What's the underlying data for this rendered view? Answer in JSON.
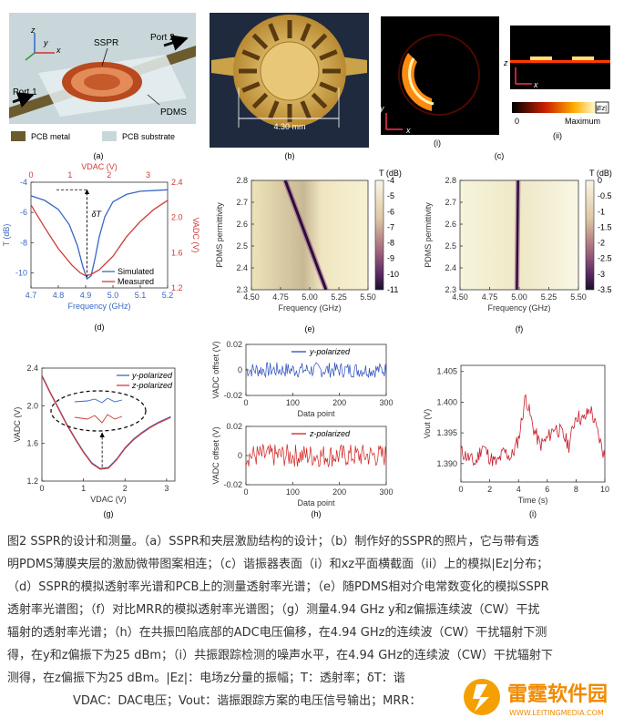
{
  "panels": {
    "a": {
      "label": "(a)",
      "callouts": {
        "sspr": "SSPR",
        "port1": "Port 1",
        "port2": "Port 2",
        "pdms": "PDMS",
        "z": "z",
        "y": "y",
        "x": "x"
      },
      "legend": {
        "metal": "PCB metal",
        "substrate": "PCB substrate"
      }
    },
    "b": {
      "label": "(b)",
      "dimension": "4.30 mm"
    },
    "c": {
      "label": "(c)",
      "sub_i": "(i)",
      "sub_ii": "(ii)",
      "colorbar_min": "0",
      "colorbar_max": "Maximum",
      "colorbar_title": "|Ez|",
      "axis_y": "y",
      "axis_x": "x",
      "axis_z": "z"
    },
    "d": {
      "label": "(d)"
    },
    "e": {
      "label": "(e)"
    },
    "f": {
      "label": "(f)"
    },
    "g": {
      "label": "(g)"
    },
    "h": {
      "label": "(h)"
    },
    "i": {
      "label": "(i)"
    }
  },
  "chart_data": [
    {
      "id": "d",
      "type": "line",
      "xlabel": "Frequency (GHz)",
      "ylabel": "T (dB)",
      "top_xlabel": "VDAC (V)",
      "right_ylabel": "VADC (V)",
      "xlim": [
        4.7,
        5.2
      ],
      "ylim": [
        -11,
        -4
      ],
      "top_xlim": [
        0,
        3.5
      ],
      "right_ylim": [
        1.2,
        2.4
      ],
      "xticks": [
        "4.7",
        "4.8",
        "4.9",
        "5.0",
        "5.1",
        "5.2"
      ],
      "yticks": [
        "-4",
        "-6",
        "-8",
        "-10"
      ],
      "top_xticks": [
        "0",
        "1",
        "2",
        "3"
      ],
      "right_yticks": [
        "2.4",
        "2.0",
        "1.6",
        "1.2"
      ],
      "annotation": "δT",
      "series": [
        {
          "name": "Simulated",
          "color": "#3a66c4",
          "x": [
            4.7,
            4.75,
            4.8,
            4.84,
            4.87,
            4.89,
            4.905,
            4.92,
            4.935,
            4.95,
            4.97,
            5.0,
            5.05,
            5.1,
            5.2
          ],
          "y": [
            -4.9,
            -5.2,
            -5.8,
            -6.8,
            -8.2,
            -9.6,
            -10.4,
            -10.2,
            -9.0,
            -7.6,
            -6.3,
            -5.3,
            -4.8,
            -4.6,
            -4.5
          ]
        },
        {
          "name": "Measured",
          "color": "#d03a3a",
          "x": [
            4.7,
            4.75,
            4.8,
            4.85,
            4.88,
            4.9,
            4.92,
            4.95,
            5.0,
            5.05,
            5.1,
            5.15,
            5.2
          ],
          "y": [
            -5.5,
            -7.0,
            -8.4,
            -9.5,
            -10.0,
            -10.2,
            -10.1,
            -9.8,
            -8.9,
            -7.6,
            -6.6,
            -5.8,
            -5.2
          ]
        }
      ]
    },
    {
      "id": "e",
      "type": "heatmap",
      "xlabel": "Frequency (GHz)",
      "ylabel": "PDMS permittivity",
      "colorbar_title": "T (dB)",
      "xlim": [
        4.5,
        5.5
      ],
      "ylim": [
        2.3,
        2.8
      ],
      "xticks": [
        "4.50",
        "4.75",
        "5.00",
        "5.25",
        "5.50"
      ],
      "yticks": [
        "2.8",
        "2.7",
        "2.6",
        "2.5",
        "2.4",
        "2.3"
      ],
      "colorbar_ticks": [
        "-4",
        "-5",
        "-6",
        "-7",
        "-8",
        "-9",
        "-10",
        "-11"
      ],
      "resonance_line": {
        "x": [
          4.79,
          5.14
        ],
        "y": [
          2.8,
          2.3
        ]
      }
    },
    {
      "id": "f",
      "type": "heatmap",
      "xlabel": "Frequency (GHz)",
      "ylabel": "PDMS permittivity",
      "colorbar_title": "T (dB)",
      "xlim": [
        4.5,
        5.5
      ],
      "ylim": [
        2.3,
        2.8
      ],
      "xticks": [
        "4.50",
        "4.75",
        "5.00",
        "5.25",
        "5.50"
      ],
      "yticks": [
        "2.8",
        "2.7",
        "2.6",
        "2.5",
        "2.4",
        "2.3"
      ],
      "colorbar_ticks": [
        "0",
        "-0.5",
        "-1",
        "-1.5",
        "-2",
        "-2.5",
        "-3",
        "-3.5"
      ],
      "resonance_line": {
        "x": [
          4.99,
          4.98
        ],
        "y": [
          2.8,
          2.3
        ]
      }
    },
    {
      "id": "g",
      "type": "line",
      "xlabel": "VDAC (V)",
      "ylabel": "VADC (V)",
      "xlim": [
        0,
        3.2
      ],
      "ylim": [
        1.2,
        2.4
      ],
      "xticks": [
        "0",
        "1",
        "2",
        "3"
      ],
      "yticks": [
        "2.4",
        "2.0",
        "1.6",
        "1.2"
      ],
      "series": [
        {
          "name": "y-polarized",
          "color": "#3a66c4",
          "x": [
            0,
            0.2,
            0.4,
            0.6,
            0.8,
            1.0,
            1.2,
            1.4,
            1.6,
            1.8,
            2.0,
            2.2,
            2.4,
            2.6,
            2.8,
            3.0,
            3.1
          ],
          "y": [
            2.32,
            2.14,
            1.97,
            1.8,
            1.65,
            1.51,
            1.39,
            1.33,
            1.34,
            1.43,
            1.55,
            1.64,
            1.71,
            1.77,
            1.82,
            1.86,
            1.88
          ]
        },
        {
          "name": "z-polarized",
          "color": "#d03a3a",
          "x": [
            0,
            0.2,
            0.4,
            0.6,
            0.8,
            1.0,
            1.2,
            1.4,
            1.6,
            1.8,
            2.0,
            2.2,
            2.4,
            2.6,
            2.8,
            3.0,
            3.1
          ],
          "y": [
            2.32,
            2.14,
            1.97,
            1.8,
            1.65,
            1.51,
            1.39,
            1.33,
            1.34,
            1.43,
            1.55,
            1.64,
            1.71,
            1.77,
            1.82,
            1.86,
            1.88
          ]
        }
      ]
    },
    {
      "id": "h_top",
      "type": "line",
      "xlabel": "Data point",
      "ylabel": "VADC offset (V)",
      "xlim": [
        0,
        300
      ],
      "ylim": [
        -0.02,
        0.02
      ],
      "xticks": [
        "0",
        "100",
        "200",
        "300"
      ],
      "yticks": [
        "0.02",
        "0",
        "-0.02"
      ],
      "series": [
        {
          "name": "y-polarized",
          "color": "#2a4cc0",
          "noise_amplitude": 0.006
        }
      ]
    },
    {
      "id": "h_bottom",
      "type": "line",
      "xlabel": "Data point",
      "ylabel": "VADC offset (V)",
      "xlim": [
        0,
        300
      ],
      "ylim": [
        -0.02,
        0.02
      ],
      "xticks": [
        "0",
        "100",
        "200",
        "300"
      ],
      "yticks": [
        "0.02",
        "0",
        "-0.02"
      ],
      "series": [
        {
          "name": "z-polarized",
          "color": "#d02020",
          "noise_amplitude": 0.008
        }
      ]
    },
    {
      "id": "i",
      "type": "line",
      "xlabel": "Time (s)",
      "ylabel": "Vout (V)",
      "xlim": [
        0,
        10
      ],
      "ylim": [
        1.387,
        1.406
      ],
      "xticks": [
        "0",
        "2",
        "4",
        "6",
        "8",
        "10"
      ],
      "yticks": [
        "1.405",
        "1.400",
        "1.395",
        "1.390"
      ],
      "series": [
        {
          "name": "",
          "color": "#c81e2e",
          "x": [
            0,
            0.5,
            1,
            1.5,
            2,
            2.5,
            3,
            3.5,
            4,
            4.5,
            5,
            5.5,
            6,
            6.5,
            7,
            7.5,
            8,
            8.5,
            9,
            9.5,
            10
          ],
          "y": [
            1.392,
            1.391,
            1.39,
            1.393,
            1.391,
            1.39,
            1.392,
            1.391,
            1.394,
            1.401,
            1.396,
            1.393,
            1.394,
            1.396,
            1.395,
            1.393,
            1.398,
            1.397,
            1.399,
            1.395,
            1.391
          ]
        }
      ]
    }
  ],
  "caption": {
    "line1": "图2 SSPR的设计和测量。（a）SSPR和夹层激励结构的设计；（b）制作好的SSPR的照片，它与带有透",
    "line2": "明PDMS薄膜夹层的激励微带图案相连；（c）谐振器表面（i）和xz平面横截面（ii）上的模拟|Ez|分布；",
    "line3": "（d）SSPR的模拟透射率光谱和PCB上的测量透射率光谱；（e）随PDMS相对介电常数变化的模拟SSPR",
    "line4": "透射率光谱图；（f）对比MRR的模拟透射率光谱图；（g）测量4.94 GHz y和z偏振连续波（CW）干扰",
    "line5": "辐射的透射率光谱；（h）在共振凹陷底部的ADC电压偏移，在4.94 GHz的连续波（CW）干扰辐射下测",
    "line6": "得，在y和z偏振下为25 dBm；（i）共振跟踪检测的噪声水平，在4.94 GHz的连续波（CW）干扰辐射下",
    "line7": "测得，在z偏振下为25 dBm。|Ez|：电场z分量的振幅；T：透射率；δT：谐",
    "line8": "VDAC：DAC电压；Vout：谐振跟踪方案的电压信号输出；MRR："
  },
  "watermark": {
    "title": "雷霆软件园",
    "url": "WWW.LEITINGMEDIA.COM"
  }
}
